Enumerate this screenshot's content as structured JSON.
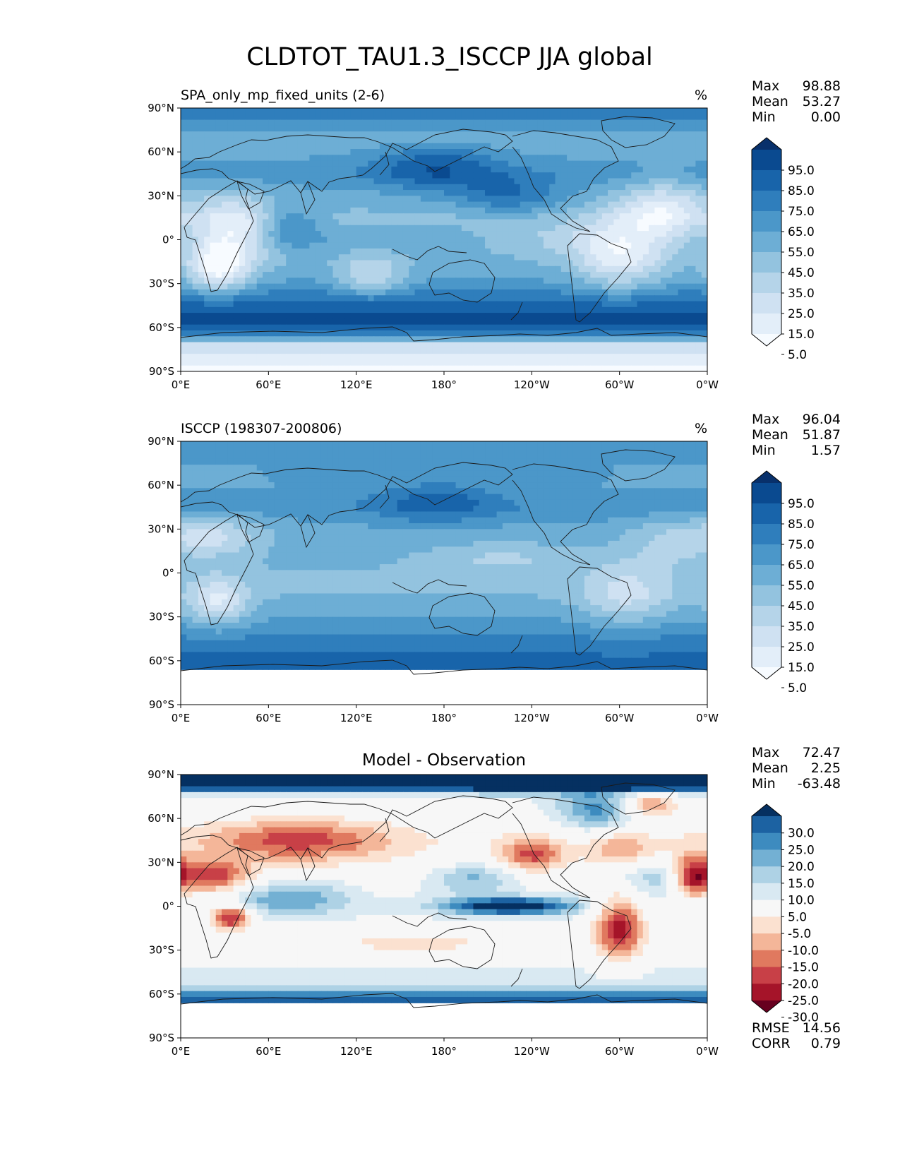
{
  "suptitle": "CLDTOT_TAU1.3_ISCCP JJA global",
  "axes": {
    "lat_ticks": [
      "90°N",
      "60°N",
      "30°N",
      "0°",
      "30°S",
      "60°S",
      "90°S"
    ],
    "lon_ticks": [
      "0°E",
      "60°E",
      "120°E",
      "180°",
      "120°W",
      "60°W",
      "0°W"
    ]
  },
  "colors": {
    "blues": [
      "#f7fbff",
      "#e3eef9",
      "#cfe1f2",
      "#b5d4e9",
      "#93c3df",
      "#6daed5",
      "#4b97c9",
      "#2f7ebc",
      "#1864aa",
      "#0a4a90",
      "#08306b"
    ],
    "diverging": [
      "#67001f",
      "#a51429",
      "#c84047",
      "#e0795f",
      "#f4b699",
      "#fbe1d0",
      "#f7f7f7",
      "#d9e9f2",
      "#aed2e5",
      "#73b0d3",
      "#3d8bbf",
      "#1c62a2",
      "#053061"
    ]
  },
  "chart_data": [
    {
      "type": "heatmap",
      "title": "SPA_only_mp_fixed_units (2-6)",
      "units": "%",
      "stats": {
        "max_label": "Max",
        "max": "98.88",
        "mean_label": "Mean",
        "mean": "53.27",
        "min_label": "Min",
        "min": "0.00"
      },
      "colorbar": {
        "levels": [
          "95.0",
          "85.0",
          "75.0",
          "65.0",
          "55.0",
          "45.0",
          "35.0",
          "25.0",
          "15.0",
          "5.0"
        ],
        "range": [
          0,
          100
        ]
      },
      "xlim": [
        0,
        360
      ],
      "ylim": [
        -90,
        90
      ],
      "field": {
        "base": [
          [
            82,
            67
          ],
          [
            70,
            45
          ],
          [
            60,
            52
          ],
          [
            45,
            62
          ],
          [
            30,
            50
          ],
          [
            15,
            42
          ],
          [
            0,
            52
          ],
          [
            -15,
            48
          ],
          [
            -30,
            58
          ],
          [
            -45,
            82
          ],
          [
            -55,
            90
          ],
          [
            -65,
            72
          ],
          [
            -72,
            25
          ],
          [
            -80,
            12
          ],
          [
            -90,
            2
          ]
        ],
        "blobs": [
          [
            175,
            50,
            30,
            12,
            26
          ],
          [
            225,
            30,
            25,
            9,
            24
          ],
          [
            35,
            5,
            20,
            18,
            -40
          ],
          [
            25,
            -20,
            14,
            12,
            -42
          ],
          [
            300,
            -10,
            22,
            18,
            -38
          ],
          [
            330,
            20,
            20,
            15,
            -36
          ],
          [
            75,
            10,
            14,
            10,
            22
          ],
          [
            130,
            -25,
            16,
            10,
            -28
          ],
          [
            260,
            0,
            40,
            8,
            -16
          ]
        ]
      }
    },
    {
      "type": "heatmap",
      "title": "ISCCP (198307-200806)",
      "units": "%",
      "stats": {
        "max_label": "Max",
        "max": "96.04",
        "mean_label": "Mean",
        "mean": "51.87",
        "min_label": "Min",
        "min": "1.57"
      },
      "colorbar": {
        "levels": [
          "95.0",
          "85.0",
          "75.0",
          "65.0",
          "55.0",
          "45.0",
          "35.0",
          "25.0",
          "15.0",
          "5.0"
        ],
        "range": [
          0,
          100
        ]
      },
      "xlim": [
        0,
        360
      ],
      "ylim": [
        -90,
        90
      ],
      "missing_below_lat": -66,
      "field": {
        "base": [
          [
            88,
            62
          ],
          [
            75,
            55
          ],
          [
            60,
            55
          ],
          [
            45,
            62
          ],
          [
            30,
            52
          ],
          [
            15,
            50
          ],
          [
            0,
            45
          ],
          [
            -15,
            45
          ],
          [
            -30,
            55
          ],
          [
            -45,
            68
          ],
          [
            -55,
            75
          ],
          [
            -66,
            80
          ]
        ],
        "blobs": [
          [
            175,
            48,
            30,
            10,
            22
          ],
          [
            220,
            10,
            40,
            8,
            -15
          ],
          [
            25,
            -20,
            15,
            12,
            -35
          ],
          [
            305,
            -15,
            22,
            15,
            -25
          ],
          [
            20,
            25,
            25,
            10,
            -30
          ],
          [
            330,
            20,
            20,
            12,
            -15
          ]
        ]
      }
    },
    {
      "type": "heatmap",
      "title": "Model - Observation",
      "stats": {
        "max_label": "Max",
        "max": "72.47",
        "mean_label": "Mean",
        "mean": "2.25",
        "min_label": "Min",
        "min": "-63.48"
      },
      "colorbar": {
        "levels": [
          "30.0",
          "25.0",
          "20.0",
          "15.0",
          "10.0",
          "5.0",
          "-5.0",
          "-10.0",
          "-15.0",
          "-20.0",
          "-25.0",
          "-30.0"
        ],
        "range": [
          -35,
          35
        ]
      },
      "rmse_label": "RMSE",
      "rmse": "14.56",
      "corr_label": "CORR",
      "corr": "0.79",
      "xlim": [
        0,
        360
      ],
      "ylim": [
        -90,
        90
      ],
      "missing_below_lat": -66,
      "field": {
        "base": [
          [
            90,
            45
          ],
          [
            82,
            40
          ],
          [
            75,
            5
          ],
          [
            60,
            0
          ],
          [
            45,
            -3
          ],
          [
            30,
            -2
          ],
          [
            15,
            3
          ],
          [
            0,
            5
          ],
          [
            -15,
            3
          ],
          [
            -30,
            3
          ],
          [
            -45,
            6
          ],
          [
            -55,
            8
          ],
          [
            -62,
            30
          ],
          [
            -66,
            25
          ]
        ],
        "blobs": [
          [
            80,
            45,
            45,
            10,
            -20
          ],
          [
            20,
            20,
            20,
            8,
            -25
          ],
          [
            35,
            -8,
            10,
            6,
            -30
          ],
          [
            300,
            -15,
            12,
            16,
            -30
          ],
          [
            350,
            20,
            10,
            10,
            -30
          ],
          [
            240,
            35,
            15,
            8,
            -20
          ],
          [
            225,
            0,
            30,
            4,
            35
          ],
          [
            200,
            20,
            20,
            8,
            14
          ],
          [
            330,
            20,
            22,
            8,
            12
          ],
          [
            90,
            5,
            20,
            8,
            12
          ],
          [
            55,
            5,
            15,
            8,
            10
          ],
          [
            160,
            -25,
            40,
            5,
            -12
          ],
          [
            300,
            40,
            15,
            8,
            -12
          ],
          [
            320,
            70,
            15,
            6,
            -20
          ],
          [
            285,
            65,
            20,
            10,
            20
          ]
        ]
      }
    }
  ]
}
